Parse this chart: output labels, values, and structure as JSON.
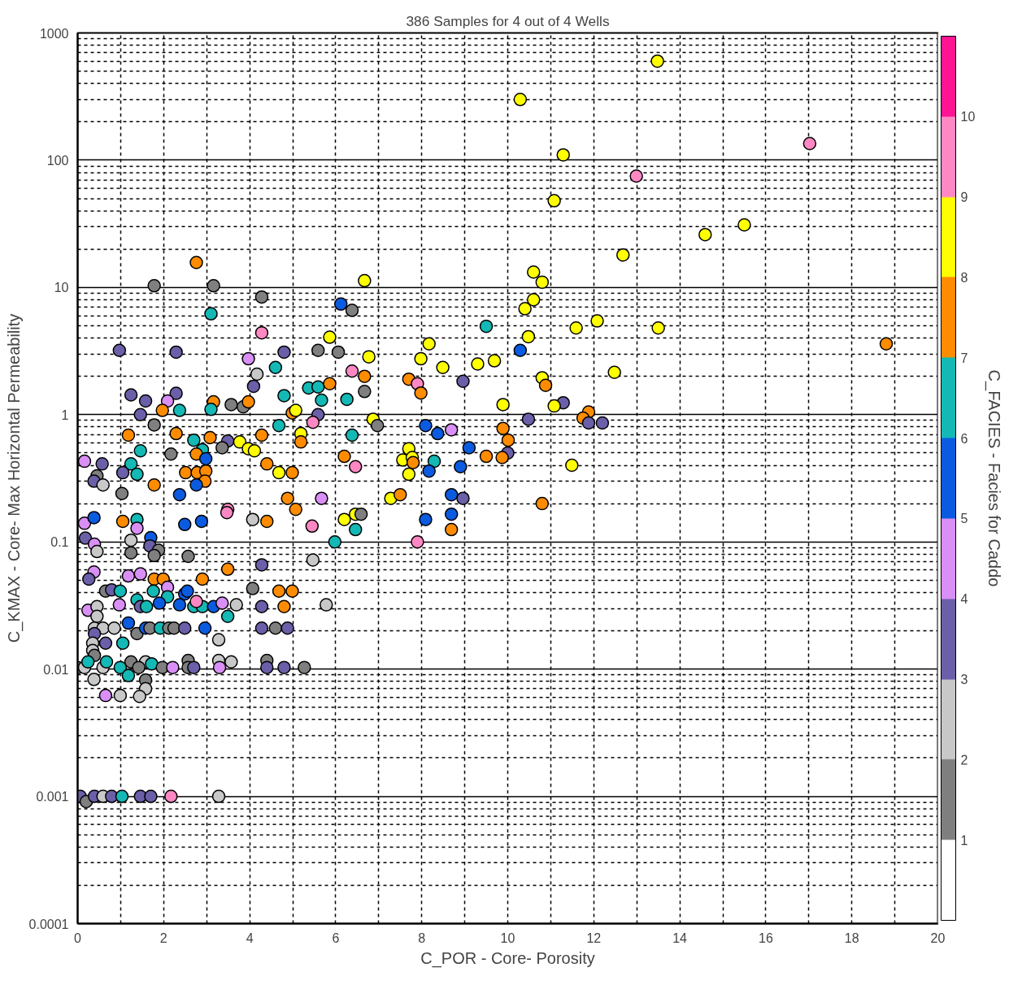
{
  "chart_data": {
    "type": "scatter",
    "title": "386 Samples for 4 out of 4 Wells",
    "xlabel": "C_POR - Core- Porosity",
    "ylabel": "C_KMAX - Core- Max Horizontal Permeability",
    "clabel": "C_FACIES - Facies for Caddo",
    "log": "y",
    "grid": true,
    "marker": "circle",
    "xlim": [
      0,
      20
    ],
    "ylim": [
      0.0001,
      1000
    ],
    "xticks": [
      0,
      {
        "value": 1,
        "label": null
      },
      2,
      {
        "value": 3,
        "label": null
      },
      4,
      {
        "value": 5,
        "label": null
      },
      6,
      {
        "value": 7,
        "label": null
      },
      8,
      {
        "value": 9,
        "label": null
      },
      10,
      {
        "value": 11,
        "label": null
      },
      12,
      {
        "value": 13,
        "label": null
      },
      14,
      {
        "value": 15,
        "label": null
      },
      16,
      {
        "value": 17,
        "label": null
      },
      18,
      {
        "value": 19,
        "label": null
      },
      20
    ],
    "yticks": [
      0.0001,
      {
        "value": 0.0002,
        "label": null
      },
      {
        "value": 0.0003,
        "label": null
      },
      {
        "value": 0.0004,
        "label": null
      },
      {
        "value": 0.0005,
        "label": null
      },
      {
        "value": 0.0006,
        "label": null
      },
      {
        "value": 0.0007,
        "label": null
      },
      {
        "value": 0.0008,
        "label": null
      },
      {
        "value": 0.0009,
        "label": null
      },
      0.001,
      {
        "value": 0.002,
        "label": null
      },
      {
        "value": 0.003,
        "label": null
      },
      {
        "value": 0.004,
        "label": null
      },
      {
        "value": 0.005,
        "label": null
      },
      {
        "value": 0.006,
        "label": null
      },
      {
        "value": 0.007,
        "label": null
      },
      {
        "value": 0.008,
        "label": null
      },
      {
        "value": 0.009,
        "label": null
      },
      0.01,
      {
        "value": 0.02,
        "label": null
      },
      {
        "value": 0.03,
        "label": null
      },
      {
        "value": 0.04,
        "label": null
      },
      {
        "value": 0.05,
        "label": null
      },
      {
        "value": 0.06,
        "label": null
      },
      {
        "value": 0.07,
        "label": null
      },
      {
        "value": 0.08,
        "label": null
      },
      {
        "value": 0.09,
        "label": null
      },
      0.1,
      {
        "value": 0.2,
        "label": null
      },
      {
        "value": 0.3,
        "label": null
      },
      {
        "value": 0.4,
        "label": null
      },
      {
        "value": 0.5,
        "label": null
      },
      {
        "value": 0.6,
        "label": null
      },
      {
        "value": 0.7,
        "label": null
      },
      {
        "value": 0.8,
        "label": null
      },
      {
        "value": 0.9,
        "label": null
      },
      1,
      {
        "value": 2,
        "label": null
      },
      {
        "value": 3,
        "label": null
      },
      {
        "value": 4,
        "label": null
      },
      {
        "value": 5,
        "label": null
      },
      {
        "value": 6,
        "label": null
      },
      {
        "value": 7,
        "label": null
      },
      {
        "value": 8,
        "label": null
      },
      {
        "value": 9,
        "label": null
      },
      10,
      {
        "value": 20,
        "label": null
      },
      {
        "value": 30,
        "label": null
      },
      {
        "value": 40,
        "label": null
      },
      {
        "value": 50,
        "label": null
      },
      {
        "value": 60,
        "label": null
      },
      {
        "value": 70,
        "label": null
      },
      {
        "value": 80,
        "label": null
      },
      {
        "value": 90,
        "label": null
      },
      100,
      {
        "value": 200,
        "label": null
      },
      {
        "value": 300,
        "label": null
      },
      {
        "value": 400,
        "label": null
      },
      {
        "value": 500,
        "label": null
      },
      {
        "value": 600,
        "label": null
      },
      {
        "value": 700,
        "label": null
      },
      {
        "value": 800,
        "label": null
      },
      {
        "value": 900,
        "label": null
      },
      1000
    ],
    "clim": [
      0,
      11
    ],
    "cticks": [
      1,
      2,
      3,
      4,
      5,
      6,
      7,
      8,
      9,
      10
    ],
    "x": [
      13.48,
      10.29,
      17.02,
      11.29,
      12.99,
      11.08,
      15.5,
      14.59,
      12.68,
      10.6,
      10.8,
      10.6,
      10.4,
      12.08,
      11.59,
      13.5,
      10.48,
      10.29,
      18.8,
      12.48,
      10.8,
      10.88,
      11.29,
      11.08,
      10.48,
      11.88,
      11.75,
      11.88,
      12.2,
      6.67,
      6.12,
      6.38,
      9.5,
      8.17,
      6.77,
      7.98,
      8.49,
      9.3,
      9.69,
      6.38,
      6.67,
      7.7,
      7.9,
      7.98,
      8.96,
      6.67,
      6.26,
      9.89,
      6.87,
      6.97,
      8.09,
      8.37,
      8.69,
      9.89,
      6.38,
      10.01,
      9.1,
      10.0,
      9.87,
      9.5,
      6.2,
      7.7,
      7.56,
      7.78,
      7.8,
      7.7,
      8.29,
      8.17,
      8.9,
      11.49,
      6.46,
      8.69,
      8.96,
      7.28,
      7.5,
      10.8,
      6.2,
      6.46,
      6.59,
      6.46,
      8.09,
      8.69,
      8.69,
      7.9,
      2.76,
      1.78,
      3.16,
      4.28,
      3.1,
      4.28,
      5.86,
      0.97,
      2.29,
      4.8,
      5.59,
      6.06,
      3.97,
      4.6,
      4.17,
      4.09,
      4.8,
      5.37,
      5.59,
      5.86,
      5.67,
      1.24,
      1.58,
      2.29,
      2.09,
      3.16,
      3.57,
      3.85,
      3.97,
      1.97,
      2.37,
      3.1,
      1.46,
      4.99,
      5.07,
      5.59,
      5.47,
      1.78,
      4.68,
      1.18,
      2.29,
      2.7,
      3.08,
      4.28,
      5.19,
      5.19,
      3.49,
      3.77,
      3.97,
      4.11,
      3.36,
      1.46,
      2.17,
      2.9,
      2.76,
      2.98,
      0.16,
      0.57,
      1.24,
      4.4,
      2.51,
      2.78,
      2.98,
      4.99,
      4.68,
      1.05,
      1.38,
      0.45,
      0.38,
      0.59,
      1.78,
      2.96,
      2.76,
      1.03,
      2.37,
      4.88,
      5.67,
      5.07,
      3.49,
      0.16,
      0.38,
      1.05,
      1.38,
      1.38,
      2.49,
      2.88,
      3.47,
      4.07,
      4.4,
      5.45,
      5.98,
      5.47,
      0.18,
      0.39,
      0.45,
      1.24,
      1.24,
      1.7,
      1.68,
      1.88,
      1.78,
      2.57,
      4.28,
      3.49,
      0.38,
      0.26,
      1.18,
      1.46,
      1.78,
      1.99,
      2.9,
      4.07,
      4.68,
      4.99,
      0.65,
      0.79,
      0.99,
      1.38,
      2.09,
      1.76,
      2.09,
      2.49,
      2.55,
      0.24,
      0.45,
      0.45,
      0.97,
      1.46,
      1.6,
      1.9,
      2.37,
      2.7,
      2.9,
      2.76,
      3.16,
      3.36,
      3.69,
      3.49,
      4.28,
      4.8,
      5.78,
      1.18,
      1.38,
      0.39,
      0.59,
      0.85,
      0.39,
      1.05,
      0.35,
      0.65,
      1.58,
      1.68,
      1.92,
      2.12,
      2.24,
      2.49,
      2.96,
      3.28,
      4.28,
      4.6,
      4.88,
      0.35,
      0.39,
      0,
      0.16,
      0.24,
      0.59,
      0.67,
      0.99,
      1.24,
      1.58,
      1.72,
      1.42,
      1.97,
      2.21,
      2.57,
      2.57,
      2.7,
      3.28,
      3.3,
      3.57,
      4.4,
      4.4,
      4.8,
      5.27,
      1.18,
      0.38,
      1.58,
      1.58,
      1.44,
      0.65,
      0.99,
      0.06,
      0.2,
      0.39,
      0.59,
      0.79,
      1.03,
      1.46,
      1.7,
      2.17,
      3.28
    ],
    "values": [
      600,
      300,
      135,
      110,
      75,
      48,
      31,
      26,
      18,
      13.2,
      11,
      8.0,
      6.8,
      5.45,
      4.8,
      4.8,
      4.1,
      3.2,
      3.6,
      2.15,
      1.95,
      1.7,
      1.24,
      1.17,
      0.92,
      1.05,
      0.94,
      0.86,
      0.86,
      11.3,
      7.4,
      6.6,
      4.95,
      3.6,
      2.85,
      2.75,
      2.35,
      2.5,
      2.65,
      2.2,
      2.0,
      1.9,
      1.75,
      1.48,
      1.83,
      1.52,
      1.32,
      1.2,
      0.92,
      0.82,
      0.82,
      0.71,
      0.76,
      0.78,
      0.69,
      0.63,
      0.55,
      0.5,
      0.46,
      0.47,
      0.47,
      0.54,
      0.44,
      0.46,
      0.42,
      0.34,
      0.43,
      0.36,
      0.39,
      0.4,
      0.39,
      0.235,
      0.22,
      0.22,
      0.235,
      0.2,
      0.15,
      0.165,
      0.165,
      0.125,
      0.15,
      0.165,
      0.125,
      0.1,
      15.7,
      10.3,
      10.3,
      8.4,
      6.2,
      4.4,
      4.06,
      3.2,
      3.1,
      3.1,
      3.2,
      3.1,
      2.75,
      2.35,
      2.08,
      1.67,
      1.41,
      1.62,
      1.65,
      1.75,
      1.3,
      1.43,
      1.28,
      1.47,
      1.28,
      1.26,
      1.2,
      1.15,
      1.26,
      1.08,
      1.08,
      1.1,
      1.0,
      1.03,
      1.08,
      1.0,
      0.87,
      0.83,
      0.82,
      0.69,
      0.71,
      0.63,
      0.66,
      0.69,
      0.71,
      0.61,
      0.62,
      0.61,
      0.54,
      0.52,
      0.55,
      0.52,
      0.49,
      0.53,
      0.49,
      0.45,
      0.43,
      0.41,
      0.41,
      0.41,
      0.35,
      0.35,
      0.36,
      0.35,
      0.35,
      0.35,
      0.34,
      0.33,
      0.3,
      0.28,
      0.28,
      0.3,
      0.28,
      0.24,
      0.235,
      0.22,
      0.22,
      0.18,
      0.18,
      0.14,
      0.155,
      0.145,
      0.15,
      0.128,
      0.137,
      0.145,
      0.17,
      0.15,
      0.145,
      0.133,
      0.1,
      0.072,
      0.107,
      0.096,
      0.084,
      0.103,
      0.082,
      0.108,
      0.093,
      0.086,
      0.078,
      0.077,
      0.066,
      0.061,
      0.058,
      0.051,
      0.054,
      0.056,
      0.051,
      0.051,
      0.051,
      0.043,
      0.041,
      0.041,
      0.041,
      0.042,
      0.041,
      0.035,
      0.044,
      0.041,
      0.037,
      0.039,
      0.041,
      0.029,
      0.031,
      0.026,
      0.032,
      0.031,
      0.031,
      0.033,
      0.032,
      0.031,
      0.031,
      0.034,
      0.031,
      0.033,
      0.032,
      0.026,
      0.031,
      0.031,
      0.032,
      0.023,
      0.019,
      0.021,
      0.021,
      0.021,
      0.019,
      0.016,
      0.016,
      0.016,
      0.021,
      0.021,
      0.021,
      0.021,
      0.021,
      0.021,
      0.021,
      0.017,
      0.021,
      0.021,
      0.021,
      0.014,
      0.0128,
      0.0103,
      0.0103,
      0.0114,
      0.0103,
      0.0114,
      0.0103,
      0.0114,
      0.0114,
      0.011,
      0.0103,
      0.0103,
      0.0103,
      0.0117,
      0.0103,
      0.0103,
      0.0117,
      0.0103,
      0.0114,
      0.0117,
      0.0103,
      0.0103,
      0.0103,
      0.0089,
      0.0083,
      0.0082,
      0.007,
      0.0061,
      0.0062,
      0.0062,
      0.001,
      0.00091,
      0.001,
      0.001,
      0.001,
      0.001,
      0.001,
      0.001,
      0.001,
      0.001
    ],
    "cvalues": [
      8,
      8,
      9,
      8,
      9,
      8,
      8,
      8,
      8,
      8,
      8,
      8,
      8,
      8,
      8,
      8,
      8,
      5,
      7,
      8,
      8,
      7,
      3,
      8,
      3,
      7,
      7,
      3,
      3,
      8,
      5,
      1,
      6,
      8,
      8,
      8,
      8,
      8,
      8,
      9,
      7,
      7,
      9,
      7,
      3,
      1,
      6,
      8,
      8,
      1,
      5,
      5,
      4,
      7,
      6,
      7,
      5,
      3,
      7,
      7,
      7,
      8,
      8,
      8,
      7,
      8,
      6,
      5,
      5,
      8,
      9,
      5,
      3,
      8,
      7,
      7,
      8,
      8,
      1,
      6,
      5,
      5,
      7,
      9,
      7,
      1,
      1,
      1,
      6,
      9,
      8,
      3,
      3,
      3,
      1,
      1,
      4,
      6,
      2,
      3,
      6,
      6,
      6,
      7,
      6,
      3,
      3,
      3,
      4,
      7,
      1,
      1,
      7,
      7,
      6,
      6,
      3,
      7,
      8,
      3,
      9,
      1,
      6,
      7,
      7,
      6,
      7,
      7,
      8,
      7,
      3,
      8,
      8,
      8,
      1,
      6,
      1,
      6,
      7,
      5,
      4,
      3,
      6,
      7,
      7,
      7,
      7,
      7,
      8,
      3,
      6,
      1,
      3,
      2,
      7,
      7,
      5,
      1,
      5,
      7,
      4,
      7,
      9,
      4,
      5,
      7,
      6,
      4,
      5,
      5,
      9,
      2,
      7,
      9,
      6,
      2,
      3,
      4,
      2,
      2,
      1,
      5,
      3,
      1,
      1,
      1,
      3,
      7,
      4,
      3,
      4,
      4,
      7,
      7,
      7,
      1,
      7,
      7,
      1,
      3,
      6,
      6,
      4,
      6,
      6,
      5,
      5,
      4,
      2,
      2,
      4,
      3,
      6,
      5,
      5,
      6,
      6,
      9,
      5,
      4,
      2,
      6,
      3,
      7,
      2,
      5,
      1,
      2,
      2,
      2,
      3,
      6,
      2,
      3,
      5,
      1,
      6,
      1,
      1,
      3,
      5,
      2,
      3,
      1,
      3,
      2,
      1,
      1,
      2,
      6,
      2,
      6,
      6,
      1,
      2,
      6,
      1,
      1,
      4,
      1,
      1,
      3,
      2,
      4,
      2,
      1,
      3,
      3,
      1,
      6,
      2,
      1,
      2,
      2,
      4,
      2,
      3,
      1,
      3,
      2,
      3,
      6,
      3,
      3,
      9,
      2
    ]
  }
}
